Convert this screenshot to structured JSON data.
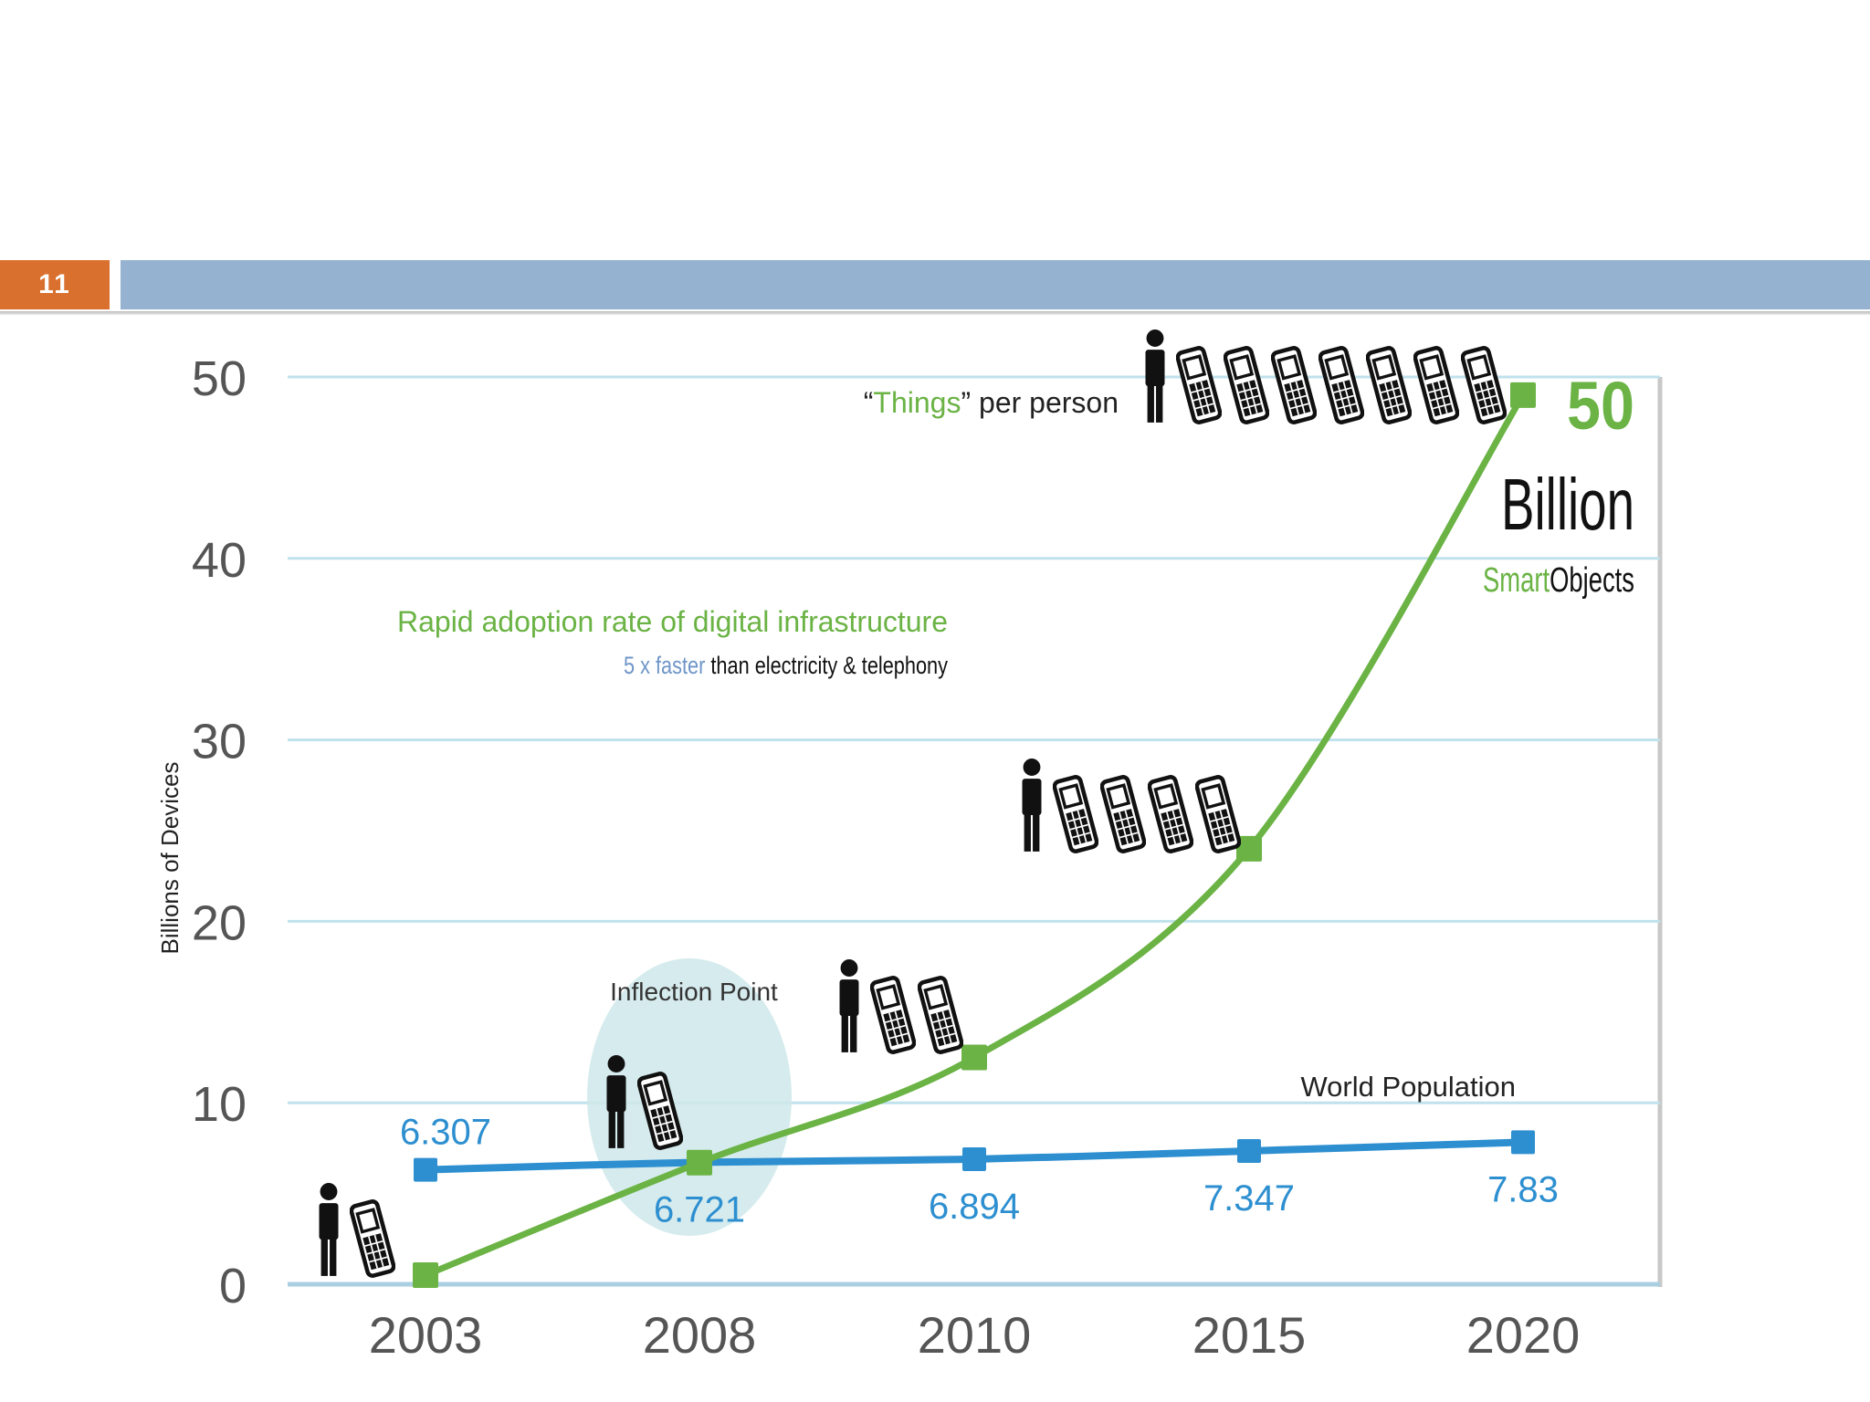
{
  "slide": {
    "number": "11"
  },
  "colors": {
    "green": "#6ab344",
    "blue": "#2d8fd0",
    "blue_text": "#2d8fd0",
    "grid": "#bfe2ec",
    "axis_text": "#555555",
    "slide_number_bg": "#d9702e",
    "title_band": "#95b3d0",
    "inflection_fill": "#cfe8ea"
  },
  "icons": {
    "person": "person-icon",
    "phone": "mobile-phone-icon"
  },
  "chart_data": {
    "type": "line",
    "ylabel": "Billions of Devices",
    "xlabel": "",
    "ylim": [
      0,
      50
    ],
    "yticks": [
      "0",
      "10",
      "20",
      "30",
      "40",
      "50"
    ],
    "categories": [
      "2003",
      "2008",
      "2010",
      "2015",
      "2020"
    ],
    "grid": true,
    "series": [
      {
        "name": "",
        "color": "#6ab344",
        "values": [
          0.5,
          6.7,
          12.5,
          24,
          49
        ]
      },
      {
        "name": "World Population",
        "color": "#2d8fd0",
        "values": [
          6.307,
          6.721,
          6.894,
          7.347,
          7.83
        ],
        "labels": [
          "6.307",
          "6.721",
          "6.894",
          "7.347",
          "7.83"
        ]
      }
    ],
    "things_per_person": [
      {
        "year": "2003",
        "phones": 1
      },
      {
        "year": "2008",
        "phones": 1
      },
      {
        "year": "2010",
        "phones": 2
      },
      {
        "year": "2015",
        "phones": 4
      },
      {
        "year": "2020",
        "phones": 7
      }
    ],
    "annotations": {
      "things_prefix": "“",
      "things_word": "Things",
      "things_suffix": "” per person",
      "adoption_line": "Rapid adoption rate of digital infrastructure",
      "faster_highlight": "5 x faster",
      "faster_rest": " than electricity & telephony",
      "inflection": "Inflection Point",
      "world_population": "World Population",
      "total_number": "50",
      "total_unit": "Billion",
      "smart_word": "Smart",
      "objects_word": "Objects"
    }
  }
}
